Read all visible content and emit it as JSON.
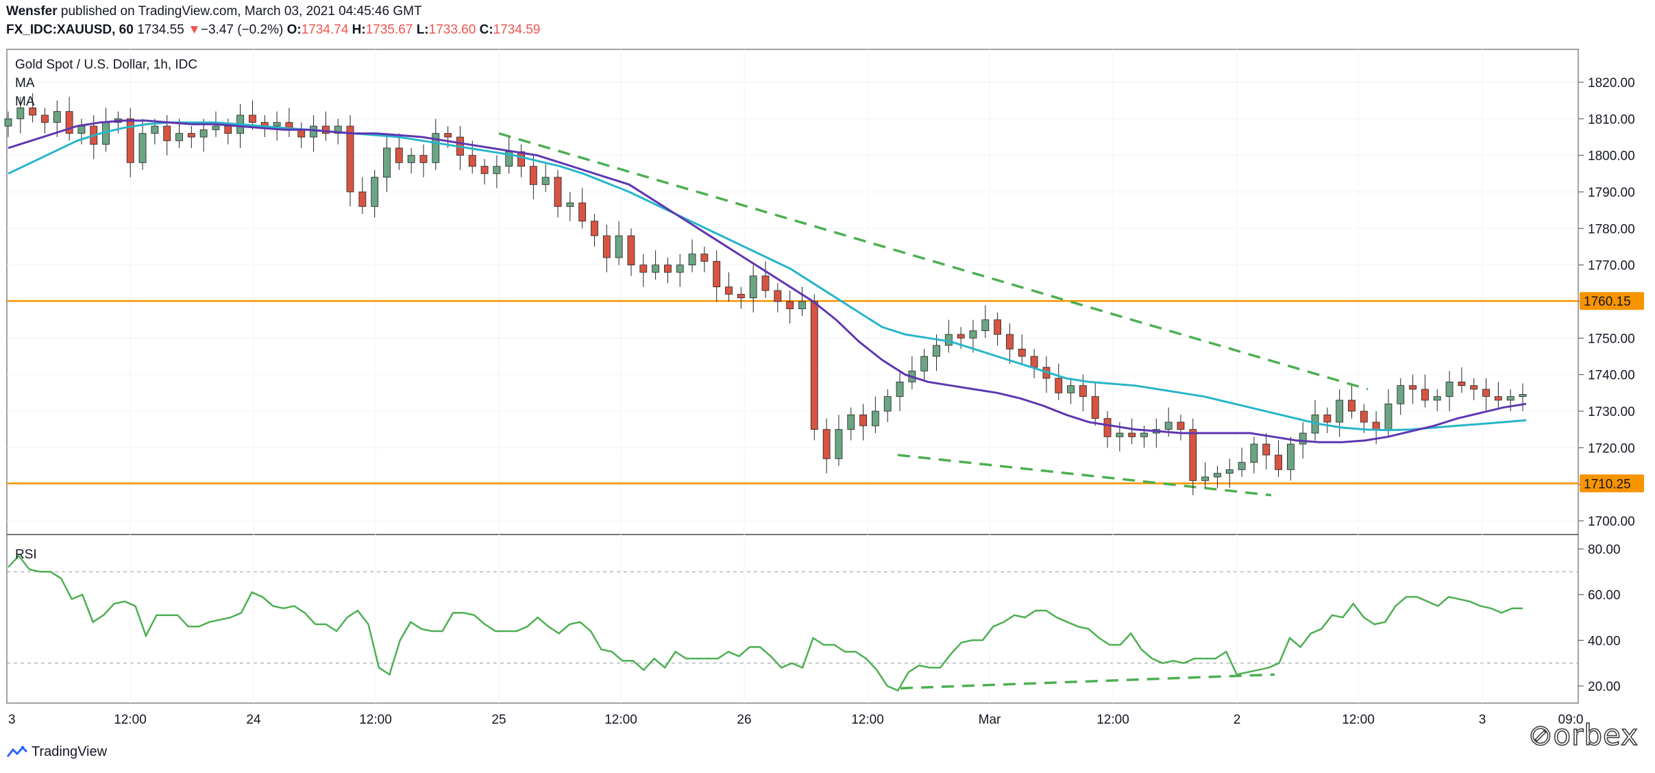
{
  "header": {
    "author": "Wensfer",
    "published_text": "published on TradingView.com, March 03, 2021 04:45:46 GMT",
    "symbol": "FX_IDC:XAUUSD, 60",
    "last": "1734.55",
    "change_arrow": "▼",
    "change": "−3.47 (−0.2%)",
    "o_label": "O:",
    "o_value": "1734.74",
    "h_label": "H:",
    "h_value": "1735.67",
    "l_label": "L:",
    "l_value": "1733.60",
    "c_label": "C:",
    "c_value": "1734.59"
  },
  "legend": {
    "title": "Gold Spot / U.S. Dollar, 1h, IDC",
    "ma1": "MA",
    "ma2": "MA",
    "rsi": "RSI"
  },
  "footer": {
    "brand": "TradingView",
    "logo_text": "orbex"
  },
  "colors": {
    "up": "#6ba583",
    "down": "#d75442",
    "ma_fast": "#5e35b1",
    "ma_slow": "#26b5c9",
    "level": "#f79400",
    "trend": "#4caf50",
    "rsi": "#4caf50"
  },
  "chart_data": [
    {
      "type": "candlestick",
      "title": "Gold Spot / U.S. Dollar, 1h, IDC",
      "ylim": [
        1695,
        1830
      ],
      "y_ticks": [
        1700,
        1710,
        1720,
        1730,
        1740,
        1750,
        1760,
        1770,
        1780,
        1790,
        1800,
        1810,
        1820
      ],
      "x_ticks": [
        "3",
        "12:00",
        "24",
        "12:00",
        "25",
        "12:00",
        "26",
        "12:00",
        "Mar",
        "12:00",
        "2",
        "12:00",
        "3",
        "09:0"
      ],
      "levels": [
        {
          "label": "1760.15",
          "value": 1760.15
        },
        {
          "label": "1710.25",
          "value": 1710.25
        }
      ],
      "closes": [
        1810,
        1813,
        1811,
        1809,
        1812,
        1806,
        1808,
        1803,
        1809,
        1810,
        1798,
        1806,
        1808,
        1804,
        1806,
        1805,
        1807,
        1808,
        1806,
        1811,
        1809,
        1808,
        1809,
        1807,
        1805,
        1808,
        1806,
        1808,
        1790,
        1786,
        1794,
        1802,
        1798,
        1800,
        1798,
        1806,
        1805,
        1800,
        1797,
        1795,
        1797,
        1801,
        1797,
        1792,
        1794,
        1786,
        1787,
        1782,
        1778,
        1772,
        1778,
        1770,
        1768,
        1770,
        1768,
        1770,
        1773,
        1771,
        1764,
        1762,
        1761,
        1767,
        1763,
        1760,
        1758,
        1760,
        1725,
        1717,
        1725,
        1729,
        1726,
        1730,
        1734,
        1738,
        1741,
        1745,
        1748,
        1751,
        1750,
        1752,
        1755,
        1751,
        1747,
        1745,
        1742,
        1739,
        1735,
        1737,
        1734,
        1728,
        1723,
        1724,
        1723,
        1724,
        1725,
        1727,
        1725,
        1711,
        1712,
        1713,
        1714,
        1716,
        1721,
        1718,
        1714,
        1721,
        1724,
        1729,
        1727,
        1733,
        1730,
        1727,
        1725,
        1732,
        1737,
        1736,
        1733,
        1734,
        1738,
        1737,
        1736,
        1734,
        1733,
        1734,
        1734.59
      ],
      "ma_fast": [
        1802,
        1804,
        1806,
        1808,
        1809,
        1809.5,
        1809.5,
        1809,
        1808.5,
        1808.5,
        1808,
        1807.5,
        1807,
        1807,
        1806.5,
        1806,
        1806,
        1805.5,
        1805,
        1804,
        1803,
        1802,
        1801,
        1800,
        1798,
        1796,
        1794,
        1792,
        1788,
        1784,
        1780,
        1776,
        1772,
        1768,
        1764,
        1760,
        1755,
        1749,
        1744,
        1740,
        1738,
        1737,
        1736,
        1735,
        1733.5,
        1731.5,
        1729,
        1727,
        1726,
        1725,
        1724.5,
        1724,
        1724,
        1724,
        1724,
        1723,
        1722,
        1721.5,
        1721.5,
        1722,
        1723,
        1724.5,
        1726,
        1728,
        1729.5,
        1731,
        1732
      ],
      "ma_slow": [
        1795,
        1798,
        1801,
        1804,
        1806,
        1807.5,
        1808.5,
        1809,
        1809,
        1809,
        1808.5,
        1808,
        1807.5,
        1807,
        1806.5,
        1806,
        1805.5,
        1805,
        1804,
        1803,
        1802,
        1801,
        1800,
        1798.5,
        1797,
        1795,
        1792.5,
        1790,
        1787,
        1784,
        1781,
        1778,
        1775,
        1772,
        1769,
        1765,
        1761,
        1757,
        1753,
        1751,
        1750,
        1749,
        1747,
        1745,
        1743,
        1741,
        1739,
        1738,
        1737.5,
        1737,
        1736,
        1735,
        1734,
        1732.5,
        1731,
        1729.5,
        1728,
        1726.5,
        1725.5,
        1725,
        1724.8,
        1725,
        1725.5,
        1726,
        1726.5,
        1727,
        1727.5
      ]
    },
    {
      "type": "line",
      "title": "RSI",
      "ylim": [
        15,
        85
      ],
      "y_ticks": [
        20,
        40,
        60,
        80
      ],
      "guides": [
        70,
        30
      ],
      "values": [
        72,
        77,
        71,
        70,
        70,
        67,
        58,
        60,
        48,
        51,
        56,
        57,
        55,
        42,
        51,
        51,
        51,
        46,
        46,
        48,
        49,
        50,
        52,
        61,
        59,
        55,
        54,
        55,
        52,
        47,
        47,
        44,
        50,
        53,
        47,
        28,
        25,
        40,
        48,
        45,
        44,
        44,
        52,
        52,
        51,
        47,
        44,
        44,
        44,
        46,
        50,
        46,
        43,
        47,
        48,
        44,
        36,
        35,
        31,
        31,
        27,
        32,
        28,
        35,
        32,
        32,
        32,
        32,
        35,
        33,
        37,
        37,
        33,
        28,
        30,
        28,
        41,
        38,
        38,
        35,
        35,
        32,
        27,
        20,
        18,
        26,
        29,
        28,
        28,
        34,
        39,
        40,
        40,
        46,
        48,
        51,
        50,
        53,
        53,
        50,
        48,
        46,
        45,
        41,
        38,
        38,
        43,
        36,
        32,
        30,
        31,
        30,
        32,
        32,
        32,
        35,
        25,
        26,
        27,
        28,
        30,
        41,
        37,
        43,
        45,
        51,
        50,
        56,
        50,
        47,
        48,
        55,
        59,
        59,
        57,
        55,
        59,
        58,
        57,
        55,
        54,
        52,
        54,
        54
      ]
    }
  ]
}
